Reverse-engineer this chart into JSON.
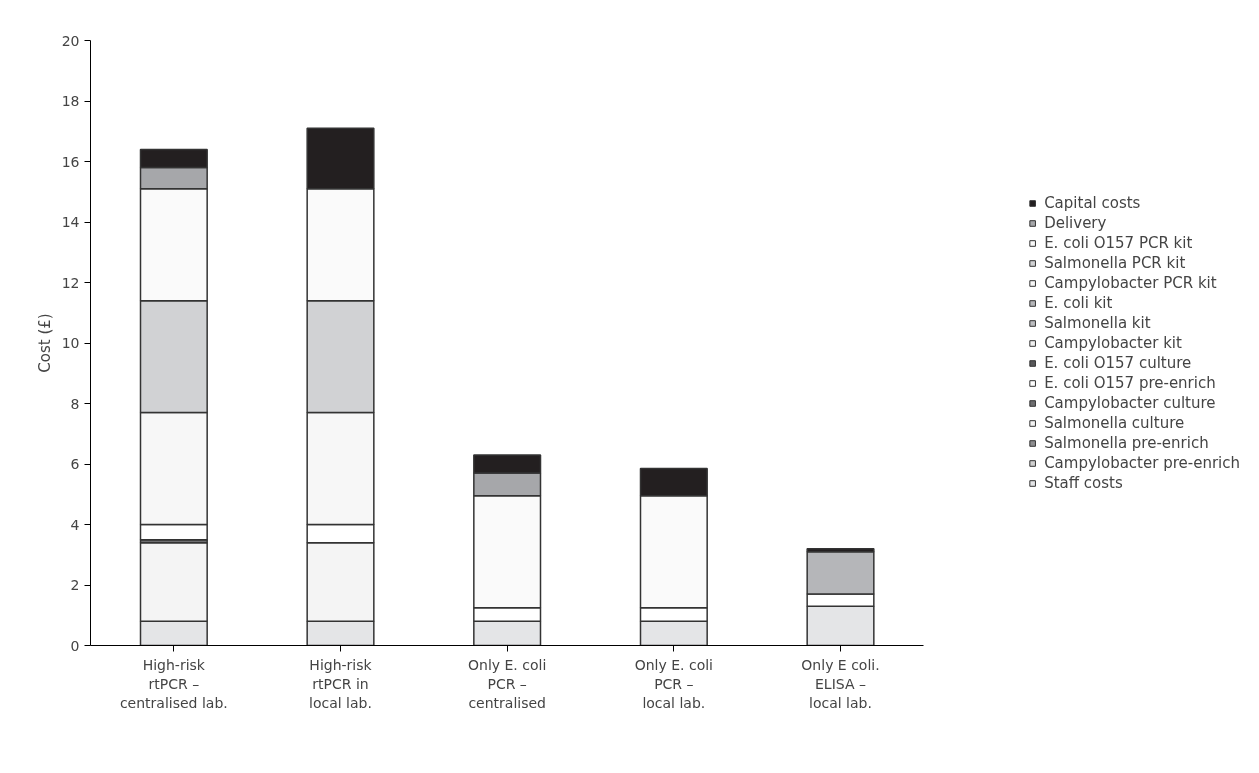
{
  "chart_data": {
    "type": "bar",
    "stacked": true,
    "ylabel": "Cost (£)",
    "categories": [
      "High-risk\nrtPCR –\ncentralised lab.",
      "High-risk\nrtPCR in\nlocal lab.",
      "Only E. coli\nPCR –\ncentralised",
      "Only E. coli\nPCR –\nlocal lab.",
      "Only E coli.\nELISA –\nlocal lab."
    ],
    "ylim": [
      0,
      20
    ],
    "yticks": [
      0,
      2,
      4,
      6,
      8,
      10,
      12,
      14,
      16,
      18,
      20
    ],
    "grid": false,
    "legend": "right",
    "series": [
      {
        "name": "Staff costs",
        "color": "#e4e5e7",
        "values": [
          0.8,
          0.8,
          0.8,
          0.8,
          1.3
        ]
      },
      {
        "name": "Campylobacter pre-enrich",
        "color": "#d0d0d0",
        "values": [
          null,
          null,
          null,
          null,
          null
        ]
      },
      {
        "name": "Salmonella pre-enrich",
        "color": "#8e8e90",
        "values": [
          null,
          null,
          null,
          null,
          null
        ]
      },
      {
        "name": "Salmonella culture",
        "color": "#f4f4f4",
        "values": [
          2.6,
          2.6,
          null,
          null,
          null
        ]
      },
      {
        "name": "Campylobacter culture",
        "color": "#6e6e70",
        "values": [
          0.1,
          null,
          null,
          null,
          null
        ]
      },
      {
        "name": "E. coli O157 pre-enrich",
        "color": "#ffffff",
        "values": [
          0.5,
          0.6,
          0.45,
          0.45,
          0.4
        ]
      },
      {
        "name": "E. coli O157 culture",
        "color": "#58585a",
        "values": [
          null,
          null,
          null,
          null,
          null
        ]
      },
      {
        "name": "Campylobacter kit",
        "color": "#f0f0f0",
        "values": [
          null,
          null,
          null,
          null,
          null
        ]
      },
      {
        "name": "Salmonella kit",
        "color": "#bcbdc0",
        "values": [
          null,
          null,
          null,
          null,
          null
        ]
      },
      {
        "name": "E. coli kit",
        "color": "#b5b6b9",
        "values": [
          null,
          null,
          null,
          null,
          1.4
        ]
      },
      {
        "name": "Campylobacter PCR kit",
        "color": "#f7f7f7",
        "values": [
          3.7,
          3.7,
          null,
          null,
          null
        ]
      },
      {
        "name": "Salmonella PCR kit",
        "color": "#d1d2d4",
        "values": [
          3.7,
          3.7,
          null,
          null,
          null
        ]
      },
      {
        "name": "E. coli O157 PCR kit",
        "color": "#fafafa",
        "values": [
          3.7,
          3.7,
          3.7,
          3.7,
          null
        ]
      },
      {
        "name": "Delivery",
        "color": "#a6a7aa",
        "values": [
          0.7,
          null,
          0.75,
          null,
          null
        ]
      },
      {
        "name": "Capital costs",
        "color": "#231f20",
        "values": [
          0.6,
          2.0,
          0.6,
          0.9,
          0.1
        ]
      }
    ]
  }
}
